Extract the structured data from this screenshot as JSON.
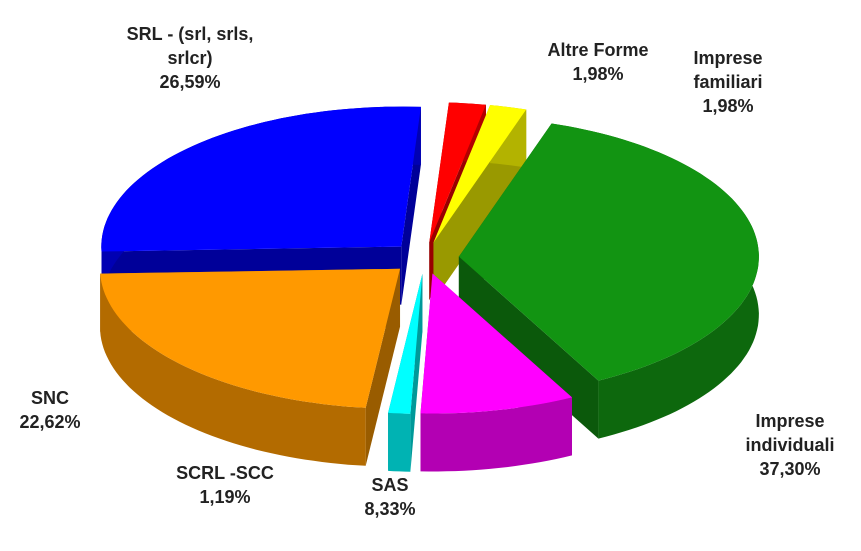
{
  "chart_data": {
    "type": "pie3d",
    "categories": [
      "Imprese individuali",
      "SAS",
      "SCRL -SCC",
      "SNC",
      "SRL -  (srl, srls, srlcr)",
      "Altre Forme",
      "Imprese familiari"
    ],
    "values": [
      37.3,
      8.33,
      1.19,
      22.62,
      26.59,
      1.98,
      1.98
    ],
    "value_labels": [
      "37,30%",
      "8,33%",
      "1,19%",
      "22,62%",
      "26,59%",
      "1,98%",
      "1,98%"
    ],
    "colors": [
      "#129412",
      "#ff00ff",
      "#00ffff",
      "#ff9900",
      "#0000ff",
      "#ff0000",
      "#ffff00"
    ]
  }
}
